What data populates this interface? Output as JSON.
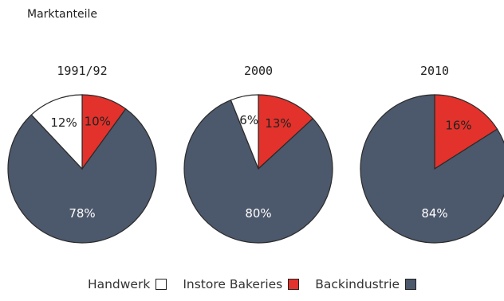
{
  "title": "Marktanteile",
  "colors": {
    "Handwerk": "#ffffff",
    "Instore Bakeries": "#e2322b",
    "Backindustrie": "#4c586b"
  },
  "chart_data": [
    {
      "type": "pie",
      "title": "1991/92",
      "slices": [
        {
          "label": "Instore Bakeries",
          "value": 10,
          "text": "10%"
        },
        {
          "label": "Backindustrie",
          "value": 78,
          "text": "78%"
        },
        {
          "label": "Handwerk",
          "value": 12,
          "text": "12%"
        }
      ]
    },
    {
      "type": "pie",
      "title": "2000",
      "slices": [
        {
          "label": "Instore Bakeries",
          "value": 13,
          "text": "13%"
        },
        {
          "label": "Backindustrie",
          "value": 80,
          "text": "80%"
        },
        {
          "label": "Handwerk",
          "value": 6,
          "text": "6%"
        }
      ]
    },
    {
      "type": "pie",
      "title": "2010",
      "slices": [
        {
          "label": "Instore Bakeries",
          "value": 16,
          "text": "16%"
        },
        {
          "label": "Backindustrie",
          "value": 84,
          "text": "84%"
        }
      ]
    }
  ],
  "legend": [
    {
      "label": "Handwerk",
      "color": "#ffffff"
    },
    {
      "label": "Instore Bakeries",
      "color": "#e2322b"
    },
    {
      "label": "Backindustrie",
      "color": "#4c586b"
    }
  ]
}
